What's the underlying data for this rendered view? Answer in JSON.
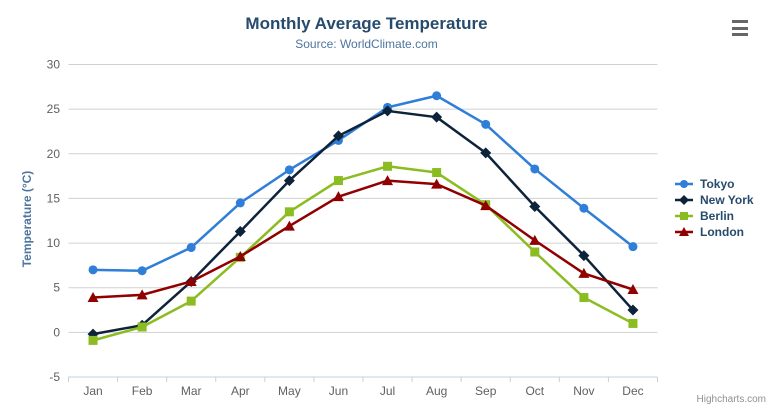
{
  "chart": {
    "theme": {
      "background": "#ffffff",
      "title_color": "#274b6d",
      "subtitle_color": "#4d759e",
      "axis_title_color": "#4d759e",
      "axis_label_color": "#606060",
      "grid_color": "#d0d0d0",
      "axis_line_color": "#c0d0e0",
      "legend_text_color": "#274b6d",
      "credits_color": "#909090"
    },
    "credits": "Highcharts.com"
  },
  "chart_data": {
    "type": "line",
    "title": "Monthly Average Temperature",
    "subtitle": "Source: WorldClimate.com",
    "xlabel": "",
    "ylabel": "Temperature (°C)",
    "categories": [
      "Jan",
      "Feb",
      "Mar",
      "Apr",
      "May",
      "Jun",
      "Jul",
      "Aug",
      "Sep",
      "Oct",
      "Nov",
      "Dec"
    ],
    "series": [
      {
        "name": "Tokyo",
        "color": "#2f7ed8",
        "marker": "circle",
        "values": [
          7.0,
          6.9,
          9.5,
          14.5,
          18.2,
          21.5,
          25.2,
          26.5,
          23.3,
          18.3,
          13.9,
          9.6
        ]
      },
      {
        "name": "New York",
        "color": "#0d233a",
        "marker": "diamond",
        "values": [
          -0.2,
          0.8,
          5.7,
          11.3,
          17.0,
          22.0,
          24.8,
          24.1,
          20.1,
          14.1,
          8.6,
          2.5
        ]
      },
      {
        "name": "Berlin",
        "color": "#8bbc21",
        "marker": "square",
        "values": [
          -0.9,
          0.6,
          3.5,
          8.4,
          13.5,
          17.0,
          18.6,
          17.9,
          14.3,
          9.0,
          3.9,
          1.0
        ]
      },
      {
        "name": "London",
        "color": "#910000",
        "marker": "triangle",
        "values": [
          3.9,
          4.2,
          5.7,
          8.5,
          11.9,
          15.2,
          17.0,
          16.6,
          14.2,
          10.3,
          6.6,
          4.8
        ]
      }
    ],
    "ylim": [
      -5,
      30
    ],
    "ytick_interval": 5,
    "grid": true,
    "legend_position": "right"
  }
}
